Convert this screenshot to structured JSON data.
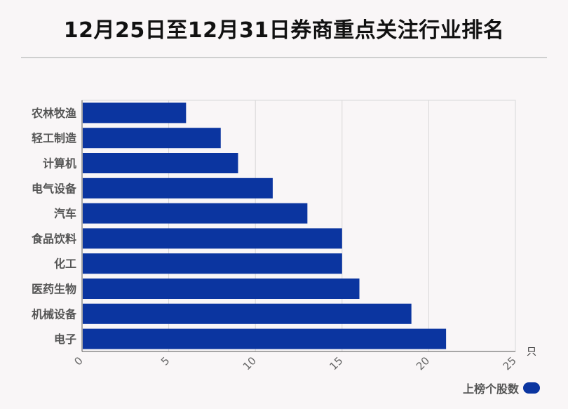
{
  "chart_data": {
    "type": "bar",
    "orientation": "horizontal",
    "title": "12月25日至12月31日券商重点关注行业排名",
    "xlabel": "",
    "unit": "只",
    "categories": [
      "农林牧渔",
      "轻工制造",
      "计算机",
      "电气设备",
      "汽车",
      "食品饮料",
      "化工",
      "医药生物",
      "机械设备",
      "电子"
    ],
    "series": [
      {
        "name": "上榜个股数",
        "values": [
          6,
          8,
          9,
          11,
          13,
          15,
          15,
          16,
          19,
          21
        ]
      }
    ],
    "xlim": [
      0,
      25
    ],
    "xticks": [
      "0",
      "5",
      "10",
      "15",
      "20",
      "25"
    ],
    "grid": true,
    "legend": "bottom-right",
    "colors": {
      "bar": "#0b35a0"
    }
  }
}
